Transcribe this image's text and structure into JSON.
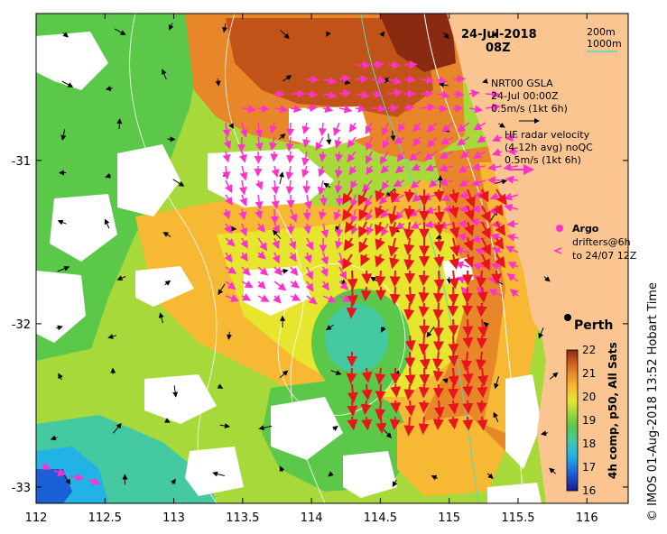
{
  "map": {
    "date": "24-Jul-2018",
    "time": "08Z",
    "depth_legend": {
      "contour_1": "200m",
      "contour_2": "1000m",
      "contour_2_color": "#55d6c2"
    },
    "gsla_legend": {
      "title": "NRT00 GSLA",
      "date": "24-Jul 00:00Z",
      "scale": "0.5m/s (1kt 6h)",
      "arrow_color": "#000000"
    },
    "radar_legend": {
      "title": "HF radar velocity",
      "subtitle": "(4-12h avg) noQC",
      "scale": "0.5m/s (1kt 6h)",
      "arrow_color": "#ff33cc"
    },
    "argo_legend": {
      "label": "Argo",
      "color": "#ff33cc"
    },
    "drifter_legend": {
      "label_line1": "drifters@6h",
      "label_line2": "to 24/07 12Z",
      "color": "#ff33cc"
    },
    "city": {
      "name": "Perth",
      "lon": 115.86,
      "lat": -31.95
    },
    "colorbar": {
      "label": "4h comp, p50, All Sats",
      "ticks": [
        "22",
        "21",
        "20",
        "19",
        "18",
        "17",
        "16"
      ],
      "min": 16,
      "max": 22,
      "colors": [
        "#1a1a8c",
        "#1a5fd6",
        "#22b3e6",
        "#44c9a0",
        "#5cc84a",
        "#a8d93a",
        "#e6e62e",
        "#f7b934",
        "#e8862a",
        "#c25318",
        "#8a2a10"
      ]
    },
    "credit": "© IMOS 01-Aug-2018 13:52 Hobart Time",
    "x_axis": {
      "ticks": [
        "112",
        "112.5",
        "113",
        "113.5",
        "114",
        "114.5",
        "115",
        "115.5",
        "116"
      ],
      "min": 112,
      "max": 116.3
    },
    "y_axis": {
      "ticks": [
        "-31",
        "-32",
        "-33"
      ],
      "min": -33.1,
      "max": -30.1
    },
    "colors": {
      "land": "#fbc592",
      "cloud": "#ffffff",
      "radar": "#ff33cc",
      "strong_current": "#e8161c",
      "gsla": "#000000",
      "contour_200": "#ffffff"
    }
  }
}
